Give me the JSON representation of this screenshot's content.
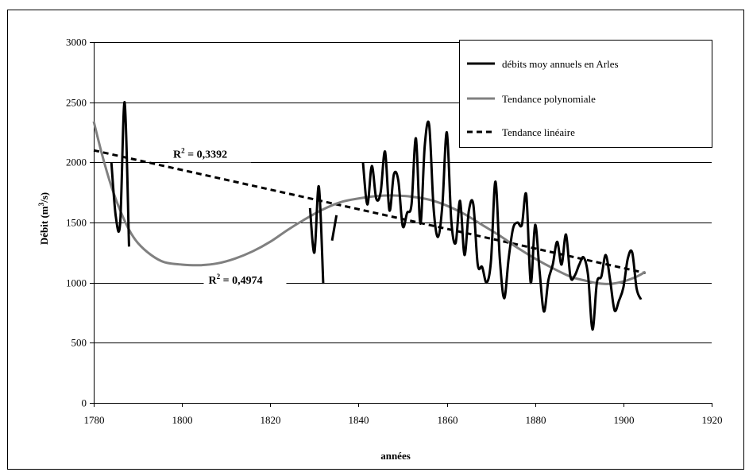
{
  "chart_data": {
    "type": "line",
    "xlabel": "années",
    "ylabel_main": "Débit (m",
    "ylabel_sup": "3",
    "ylabel_end": "/s)",
    "xlim": [
      1780,
      1920
    ],
    "ylim": [
      0,
      3000
    ],
    "x_ticks": [
      1780,
      1800,
      1820,
      1840,
      1860,
      1880,
      1900,
      1920
    ],
    "y_ticks": [
      0,
      500,
      1000,
      1500,
      2000,
      2500,
      3000
    ],
    "grid": "horizontal",
    "legend_position": "top-right",
    "colors": {
      "data": "#000000",
      "polynomial": "#808080",
      "linear": "#000000"
    },
    "series": [
      {
        "name": "débits moy annuels en Arles",
        "segments": [
          [
            [
              1784,
              2000
            ],
            [
              1785,
              1550
            ],
            [
              1786,
              1500
            ],
            [
              1787,
              2500
            ],
            [
              1788,
              1300
            ]
          ],
          [
            [
              1829,
              1620
            ],
            [
              1830,
              1250
            ],
            [
              1831,
              1800
            ],
            [
              1832,
              990
            ]
          ],
          [
            [
              1834,
              1350
            ],
            [
              1835,
              1560
            ]
          ],
          [
            [
              1841,
              2000
            ],
            [
              1842,
              1650
            ],
            [
              1843,
              1970
            ],
            [
              1844,
              1700
            ],
            [
              1845,
              1750
            ],
            [
              1846,
              2090
            ],
            [
              1847,
              1600
            ],
            [
              1848,
              1900
            ],
            [
              1849,
              1850
            ],
            [
              1850,
              1470
            ],
            [
              1851,
              1580
            ],
            [
              1852,
              1650
            ],
            [
              1853,
              2200
            ],
            [
              1854,
              1490
            ],
            [
              1855,
              2140
            ],
            [
              1856,
              2310
            ],
            [
              1857,
              1620
            ],
            [
              1858,
              1380
            ],
            [
              1859,
              1650
            ],
            [
              1860,
              2250
            ],
            [
              1861,
              1520
            ],
            [
              1862,
              1330
            ],
            [
              1863,
              1680
            ],
            [
              1864,
              1230
            ],
            [
              1865,
              1600
            ],
            [
              1866,
              1650
            ],
            [
              1867,
              1150
            ],
            [
              1868,
              1130
            ],
            [
              1869,
              1000
            ],
            [
              1870,
              1180
            ],
            [
              1871,
              1840
            ],
            [
              1872,
              1200
            ],
            [
              1873,
              870
            ],
            [
              1874,
              1200
            ],
            [
              1875,
              1450
            ],
            [
              1876,
              1500
            ],
            [
              1877,
              1480
            ],
            [
              1878,
              1730
            ],
            [
              1879,
              1000
            ],
            [
              1880,
              1480
            ],
            [
              1881,
              1100
            ],
            [
              1882,
              760
            ],
            [
              1883,
              1020
            ],
            [
              1884,
              1150
            ],
            [
              1885,
              1340
            ],
            [
              1886,
              1150
            ],
            [
              1887,
              1400
            ],
            [
              1888,
              1050
            ],
            [
              1889,
              1060
            ],
            [
              1890,
              1150
            ],
            [
              1891,
              1210
            ],
            [
              1892,
              1060
            ],
            [
              1893,
              610
            ],
            [
              1894,
              1000
            ],
            [
              1895,
              1050
            ],
            [
              1896,
              1230
            ],
            [
              1897,
              1020
            ],
            [
              1898,
              770
            ],
            [
              1899,
              850
            ],
            [
              1900,
              960
            ],
            [
              1901,
              1200
            ],
            [
              1902,
              1250
            ],
            [
              1903,
              950
            ],
            [
              1904,
              860
            ]
          ]
        ]
      },
      {
        "name": "Tendance polynomiale",
        "points": [
          [
            1780,
            2340
          ],
          [
            1782,
            2050
          ],
          [
            1784,
            1800
          ],
          [
            1786,
            1600
          ],
          [
            1788,
            1440
          ],
          [
            1790,
            1330
          ],
          [
            1793,
            1230
          ],
          [
            1796,
            1170
          ],
          [
            1800,
            1150
          ],
          [
            1804,
            1145
          ],
          [
            1808,
            1160
          ],
          [
            1812,
            1200
          ],
          [
            1816,
            1260
          ],
          [
            1820,
            1340
          ],
          [
            1824,
            1440
          ],
          [
            1828,
            1530
          ],
          [
            1832,
            1610
          ],
          [
            1836,
            1670
          ],
          [
            1840,
            1700
          ],
          [
            1844,
            1720
          ],
          [
            1848,
            1725
          ],
          [
            1852,
            1715
          ],
          [
            1856,
            1690
          ],
          [
            1860,
            1640
          ],
          [
            1864,
            1570
          ],
          [
            1868,
            1480
          ],
          [
            1872,
            1390
          ],
          [
            1876,
            1290
          ],
          [
            1880,
            1200
          ],
          [
            1884,
            1120
          ],
          [
            1888,
            1050
          ],
          [
            1891,
            1020
          ],
          [
            1894,
            995
          ],
          [
            1897,
            990
          ],
          [
            1900,
            1010
          ],
          [
            1903,
            1050
          ],
          [
            1905,
            1090
          ]
        ]
      },
      {
        "name": "Tendance linéaire",
        "points": [
          [
            1780,
            2100
          ],
          [
            1905,
            1080
          ]
        ]
      }
    ],
    "annotations": [
      {
        "text": "R",
        "sup": "2",
        "rest": " = 0,3392",
        "x": 1798,
        "y": 2040
      },
      {
        "text": "R",
        "sup": "2",
        "rest": " = 0,4974",
        "x": 1806,
        "y": 990
      }
    ]
  }
}
